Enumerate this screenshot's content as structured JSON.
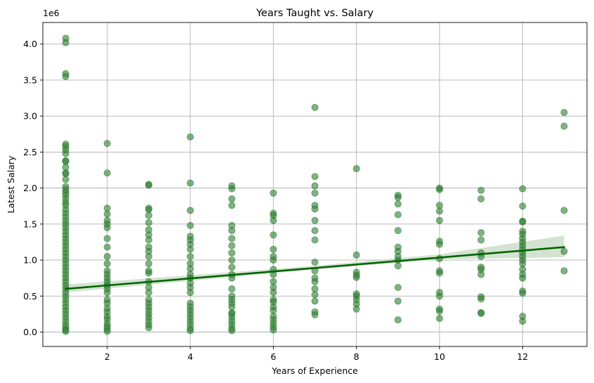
{
  "chart_data": {
    "type": "scatter",
    "title": "Years Taught vs. Salary",
    "xlabel": "Years of Experience",
    "ylabel": "Latest Salary",
    "y_offset_label": "1e6",
    "xlim": [
      0.45,
      13.55
    ],
    "ylim": [
      -0.2,
      4.3
    ],
    "x_ticks": [
      2,
      4,
      6,
      8,
      10,
      12
    ],
    "y_ticks": [
      0.0,
      0.5,
      1.0,
      1.5,
      2.0,
      2.5,
      3.0,
      3.5,
      4.0
    ],
    "y_tick_labels": [
      "0.0",
      "0.5",
      "1.0",
      "1.5",
      "2.0",
      "2.5",
      "3.0",
      "3.5",
      "4.0"
    ],
    "grid": true,
    "point_color": "#2e7d32",
    "line_color": "#006400",
    "band_color": "#b7d1b2",
    "series": [
      {
        "type": "scatter",
        "points": [
          [
            1,
            4.08
          ],
          [
            1,
            4.02
          ],
          [
            1,
            3.59
          ],
          [
            1,
            3.55
          ],
          [
            1,
            2.61
          ],
          [
            1,
            2.58
          ],
          [
            1,
            2.53
          ],
          [
            1,
            2.48
          ],
          [
            1,
            2.38
          ],
          [
            1,
            2.37
          ],
          [
            1,
            2.29
          ],
          [
            1,
            2.21
          ],
          [
            1,
            2.2
          ],
          [
            1,
            2.12
          ],
          [
            1,
            2.02
          ],
          [
            1,
            1.98
          ],
          [
            1,
            1.94
          ],
          [
            1,
            1.9
          ],
          [
            1,
            1.85
          ],
          [
            1,
            1.8
          ],
          [
            1,
            1.76
          ],
          [
            1,
            1.7
          ],
          [
            1,
            1.65
          ],
          [
            1,
            1.6
          ],
          [
            1,
            1.55
          ],
          [
            1,
            1.5
          ],
          [
            1,
            1.45
          ],
          [
            1,
            1.4
          ],
          [
            1,
            1.35
          ],
          [
            1,
            1.3
          ],
          [
            1,
            1.25
          ],
          [
            1,
            1.2
          ],
          [
            1,
            1.15
          ],
          [
            1,
            1.1
          ],
          [
            1,
            1.05
          ],
          [
            1,
            1.0
          ],
          [
            1,
            0.95
          ],
          [
            1,
            0.9
          ],
          [
            1,
            0.85
          ],
          [
            1,
            0.8
          ],
          [
            1,
            0.75
          ],
          [
            1,
            0.7
          ],
          [
            1,
            0.65
          ],
          [
            1,
            0.6
          ],
          [
            1,
            0.55
          ],
          [
            1,
            0.5
          ],
          [
            1,
            0.45
          ],
          [
            1,
            0.4
          ],
          [
            1,
            0.35
          ],
          [
            1,
            0.3
          ],
          [
            1,
            0.25
          ],
          [
            1,
            0.2
          ],
          [
            1,
            0.15
          ],
          [
            1,
            0.1
          ],
          [
            1,
            0.06
          ],
          [
            1,
            0.03
          ],
          [
            1,
            0.01
          ],
          [
            2,
            2.62
          ],
          [
            2,
            2.21
          ],
          [
            2,
            1.72
          ],
          [
            2,
            1.64
          ],
          [
            2,
            1.55
          ],
          [
            2,
            1.5
          ],
          [
            2,
            1.45
          ],
          [
            2,
            1.3
          ],
          [
            2,
            1.18
          ],
          [
            2,
            1.05
          ],
          [
            2,
            0.95
          ],
          [
            2,
            0.85
          ],
          [
            2,
            0.8
          ],
          [
            2,
            0.75
          ],
          [
            2,
            0.7
          ],
          [
            2,
            0.65
          ],
          [
            2,
            0.6
          ],
          [
            2,
            0.55
          ],
          [
            2,
            0.45
          ],
          [
            2,
            0.4
          ],
          [
            2,
            0.33
          ],
          [
            2,
            0.28
          ],
          [
            2,
            0.22
          ],
          [
            2,
            0.18
          ],
          [
            2,
            0.12
          ],
          [
            2,
            0.08
          ],
          [
            2,
            0.04
          ],
          [
            2,
            0.01
          ],
          [
            3,
            2.05
          ],
          [
            3,
            2.04
          ],
          [
            3,
            1.72
          ],
          [
            3,
            1.7
          ],
          [
            3,
            1.62
          ],
          [
            3,
            1.52
          ],
          [
            3,
            1.42
          ],
          [
            3,
            1.35
          ],
          [
            3,
            1.28
          ],
          [
            3,
            1.18
          ],
          [
            3,
            1.12
          ],
          [
            3,
            1.05
          ],
          [
            3,
            0.95
          ],
          [
            3,
            0.85
          ],
          [
            3,
            0.82
          ],
          [
            3,
            0.7
          ],
          [
            3,
            0.62
          ],
          [
            3,
            0.55
          ],
          [
            3,
            0.45
          ],
          [
            3,
            0.4
          ],
          [
            3,
            0.35
          ],
          [
            3,
            0.3
          ],
          [
            3,
            0.25
          ],
          [
            3,
            0.2
          ],
          [
            3,
            0.15
          ],
          [
            3,
            0.1
          ],
          [
            3,
            0.06
          ],
          [
            4,
            2.71
          ],
          [
            4,
            2.07
          ],
          [
            4,
            1.69
          ],
          [
            4,
            1.48
          ],
          [
            4,
            1.33
          ],
          [
            4,
            1.28
          ],
          [
            4,
            1.22
          ],
          [
            4,
            1.15
          ],
          [
            4,
            1.05
          ],
          [
            4,
            0.95
          ],
          [
            4,
            0.88
          ],
          [
            4,
            0.8
          ],
          [
            4,
            0.75
          ],
          [
            4,
            0.68
          ],
          [
            4,
            0.62
          ],
          [
            4,
            0.55
          ],
          [
            4,
            0.4
          ],
          [
            4,
            0.35
          ],
          [
            4,
            0.3
          ],
          [
            4,
            0.25
          ],
          [
            4,
            0.2
          ],
          [
            4,
            0.15
          ],
          [
            4,
            0.1
          ],
          [
            4,
            0.05
          ],
          [
            4,
            0.02
          ],
          [
            5,
            2.03
          ],
          [
            5,
            1.99
          ],
          [
            5,
            1.85
          ],
          [
            5,
            1.76
          ],
          [
            5,
            1.48
          ],
          [
            5,
            1.41
          ],
          [
            5,
            1.3
          ],
          [
            5,
            1.2
          ],
          [
            5,
            1.1
          ],
          [
            5,
            1.0
          ],
          [
            5,
            0.9
          ],
          [
            5,
            0.8
          ],
          [
            5,
            0.75
          ],
          [
            5,
            0.6
          ],
          [
            5,
            0.5
          ],
          [
            5,
            0.45
          ],
          [
            5,
            0.4
          ],
          [
            5,
            0.35
          ],
          [
            5,
            0.27
          ],
          [
            5,
            0.25
          ],
          [
            5,
            0.2
          ],
          [
            5,
            0.15
          ],
          [
            5,
            0.1
          ],
          [
            5,
            0.05
          ],
          [
            5,
            0.02
          ],
          [
            6,
            1.93
          ],
          [
            6,
            1.65
          ],
          [
            6,
            1.62
          ],
          [
            6,
            1.55
          ],
          [
            6,
            1.35
          ],
          [
            6,
            1.15
          ],
          [
            6,
            1.05
          ],
          [
            6,
            1.0
          ],
          [
            6,
            0.87
          ],
          [
            6,
            0.8
          ],
          [
            6,
            0.7
          ],
          [
            6,
            0.62
          ],
          [
            6,
            0.55
          ],
          [
            6,
            0.45
          ],
          [
            6,
            0.42
          ],
          [
            6,
            0.35
          ],
          [
            6,
            0.3
          ],
          [
            6,
            0.22
          ],
          [
            6,
            0.17
          ],
          [
            6,
            0.12
          ],
          [
            6,
            0.07
          ],
          [
            6,
            0.03
          ],
          [
            7,
            3.12
          ],
          [
            7,
            2.16
          ],
          [
            7,
            2.03
          ],
          [
            7,
            1.93
          ],
          [
            7,
            1.76
          ],
          [
            7,
            1.71
          ],
          [
            7,
            1.55
          ],
          [
            7,
            1.41
          ],
          [
            7,
            1.28
          ],
          [
            7,
            0.97
          ],
          [
            7,
            0.85
          ],
          [
            7,
            0.75
          ],
          [
            7,
            0.7
          ],
          [
            7,
            0.6
          ],
          [
            7,
            0.52
          ],
          [
            7,
            0.43
          ],
          [
            7,
            0.28
          ],
          [
            7,
            0.24
          ],
          [
            8,
            2.27
          ],
          [
            8,
            1.07
          ],
          [
            8,
            0.83
          ],
          [
            8,
            0.79
          ],
          [
            8,
            0.76
          ],
          [
            8,
            0.53
          ],
          [
            8,
            0.5
          ],
          [
            8,
            0.45
          ],
          [
            8,
            0.39
          ],
          [
            8,
            0.32
          ],
          [
            9,
            1.9
          ],
          [
            9,
            1.87
          ],
          [
            9,
            1.78
          ],
          [
            9,
            1.63
          ],
          [
            9,
            1.41
          ],
          [
            9,
            1.18
          ],
          [
            9,
            1.12
          ],
          [
            9,
            1.05
          ],
          [
            9,
            1.0
          ],
          [
            9,
            0.92
          ],
          [
            9,
            0.62
          ],
          [
            9,
            0.43
          ],
          [
            9,
            0.17
          ],
          [
            10,
            2.0
          ],
          [
            10,
            1.98
          ],
          [
            10,
            1.76
          ],
          [
            10,
            1.68
          ],
          [
            10,
            1.55
          ],
          [
            10,
            1.26
          ],
          [
            10,
            1.22
          ],
          [
            10,
            1.02
          ],
          [
            10,
            0.85
          ],
          [
            10,
            0.82
          ],
          [
            10,
            0.55
          ],
          [
            10,
            0.5
          ],
          [
            10,
            0.32
          ],
          [
            10,
            0.29
          ],
          [
            10,
            0.19
          ],
          [
            11,
            1.97
          ],
          [
            11,
            1.85
          ],
          [
            11,
            1.38
          ],
          [
            11,
            1.28
          ],
          [
            11,
            1.1
          ],
          [
            11,
            1.05
          ],
          [
            11,
            0.9
          ],
          [
            11,
            0.87
          ],
          [
            11,
            0.8
          ],
          [
            11,
            0.49
          ],
          [
            11,
            0.46
          ],
          [
            11,
            0.27
          ],
          [
            11,
            0.26
          ],
          [
            12,
            1.99
          ],
          [
            12,
            1.75
          ],
          [
            12,
            1.54
          ],
          [
            12,
            1.53
          ],
          [
            12,
            1.4
          ],
          [
            12,
            1.36
          ],
          [
            12,
            1.3
          ],
          [
            12,
            1.25
          ],
          [
            12,
            1.2
          ],
          [
            12,
            1.15
          ],
          [
            12,
            1.1
          ],
          [
            12,
            1.05
          ],
          [
            12,
            1.0
          ],
          [
            12,
            0.95
          ],
          [
            12,
            0.87
          ],
          [
            12,
            0.8
          ],
          [
            12,
            0.75
          ],
          [
            12,
            0.57
          ],
          [
            12,
            0.54
          ],
          [
            12,
            0.22
          ],
          [
            12,
            0.15
          ],
          [
            13,
            3.05
          ],
          [
            13,
            2.86
          ],
          [
            13,
            1.69
          ],
          [
            13,
            1.12
          ],
          [
            13,
            0.85
          ]
        ]
      },
      {
        "type": "regression",
        "line": [
          [
            1,
            0.6
          ],
          [
            13,
            1.18
          ]
        ],
        "band_upper": [
          [
            1,
            0.66
          ],
          [
            4,
            0.79
          ],
          [
            7,
            0.92
          ],
          [
            10,
            1.08
          ],
          [
            13,
            1.34
          ]
        ],
        "band_lower": [
          [
            1,
            0.55
          ],
          [
            4,
            0.71
          ],
          [
            7,
            0.87
          ],
          [
            10,
            1.01
          ],
          [
            13,
            1.04
          ]
        ]
      }
    ]
  }
}
